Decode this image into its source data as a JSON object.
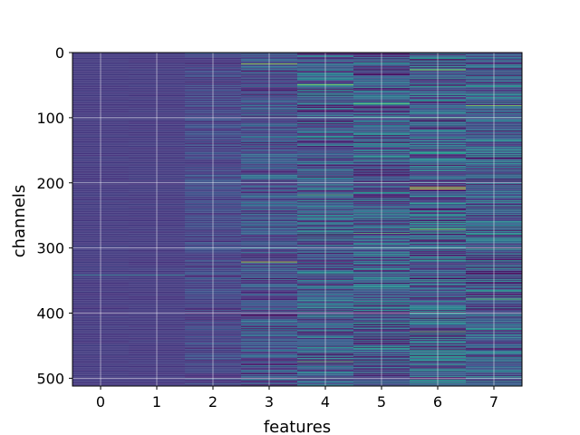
{
  "chart_data": {
    "type": "heatmap",
    "title": "",
    "xlabel": "features",
    "ylabel": "channels",
    "x_categories": [
      "0",
      "1",
      "2",
      "3",
      "4",
      "5",
      "6",
      "7"
    ],
    "xlim": [
      -0.5,
      7.5
    ],
    "ylim": [
      512,
      0
    ],
    "y_inverted": true,
    "y_ticks": [
      0,
      100,
      200,
      300,
      400,
      500
    ],
    "n_channels": 512,
    "n_features": 8,
    "colormap": "viridis",
    "grid": true,
    "grid_color": "#ffffff",
    "feature_mean_level": [
      0.17,
      0.17,
      0.2,
      0.24,
      0.28,
      0.28,
      0.3,
      0.28
    ],
    "feature_noise_level": [
      0.02,
      0.02,
      0.08,
      0.16,
      0.22,
      0.24,
      0.26,
      0.24
    ],
    "bright_stripes": [
      {
        "feature": 0,
        "channel": 341,
        "value": 0.45
      },
      {
        "feature": 1,
        "channel": 341,
        "value": 0.45
      },
      {
        "feature": 3,
        "channel": 17,
        "value": 0.85
      },
      {
        "feature": 3,
        "channel": 321,
        "value": 0.9
      },
      {
        "feature": 4,
        "channel": 49,
        "value": 0.8
      },
      {
        "feature": 4,
        "channel": 218,
        "value": 0.7
      },
      {
        "feature": 4,
        "channel": 474,
        "value": 0.75
      },
      {
        "feature": 5,
        "channel": 78,
        "value": 0.75
      },
      {
        "feature": 5,
        "channel": 277,
        "value": 0.7
      },
      {
        "feature": 6,
        "channel": 26,
        "value": 0.85
      },
      {
        "feature": 6,
        "channel": 206,
        "value": 0.95
      },
      {
        "feature": 6,
        "channel": 209,
        "value": 1.0
      },
      {
        "feature": 6,
        "channel": 271,
        "value": 0.8
      },
      {
        "feature": 6,
        "channel": 428,
        "value": 0.75
      },
      {
        "feature": 7,
        "channel": 81,
        "value": 0.8
      },
      {
        "feature": 7,
        "channel": 378,
        "value": 0.75
      }
    ]
  }
}
